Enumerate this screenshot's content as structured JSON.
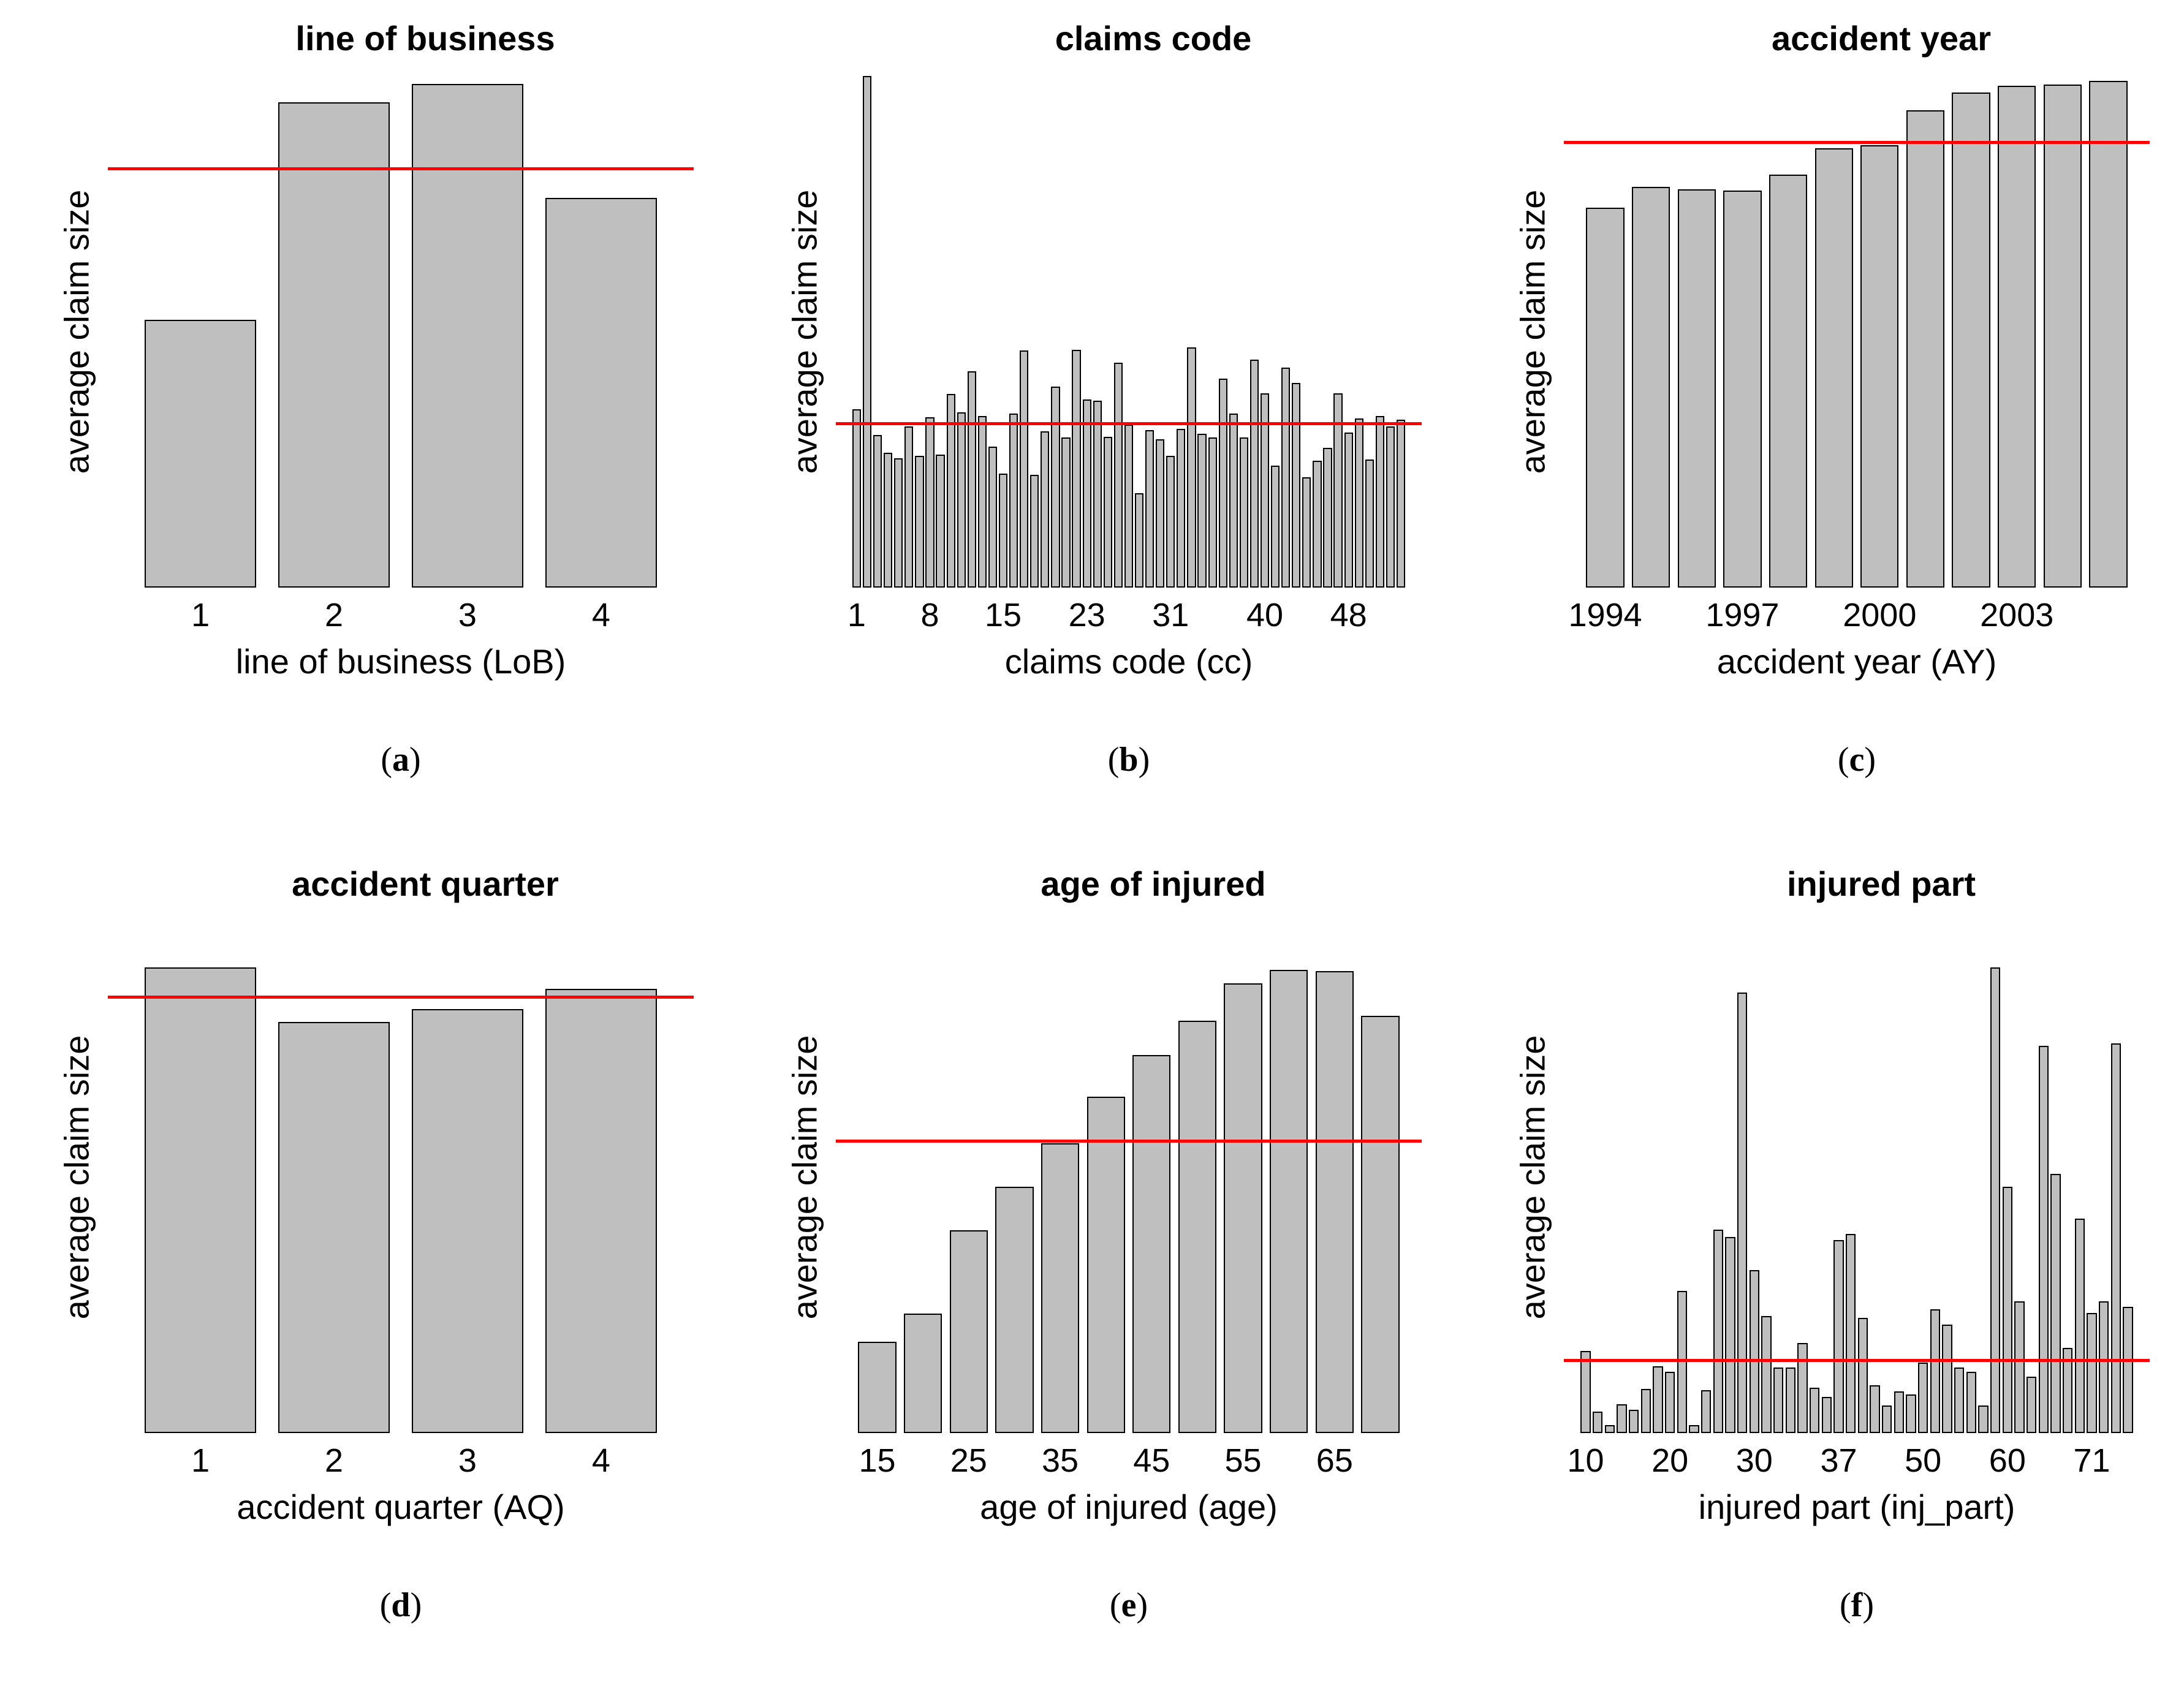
{
  "page": {
    "background": "#ffffff"
  },
  "styles": {
    "bar_fill": "#bfbfbf",
    "bar_border": "#000000",
    "mean_line_color": "#ff0000"
  },
  "chart_data": [
    {
      "panel_id": "a",
      "type": "bar",
      "title": "line of business",
      "xlabel": "line of business (LoB)",
      "ylabel": "average claim size",
      "y_axis_numbers_shown": false,
      "categories": [
        "1",
        "2",
        "3",
        "4"
      ],
      "tick_labels": [
        "1",
        "2",
        "3",
        "4"
      ],
      "tick_bar_indices": [
        0,
        1,
        2,
        3
      ],
      "values_rel_height": [
        0.523,
        0.949,
        0.985,
        0.762
      ],
      "mean_line_rel": 0.818,
      "caption": {
        "open": "(",
        "letter": "a",
        "close": ")"
      }
    },
    {
      "panel_id": "b",
      "type": "bar",
      "title": "claims code",
      "xlabel": "claims code (cc)",
      "ylabel": "average claim size",
      "y_axis_numbers_shown": false,
      "categories": [
        1,
        2,
        3,
        4,
        5,
        6,
        7,
        8,
        9,
        10,
        11,
        12,
        13,
        14,
        15,
        16,
        17,
        18,
        19,
        20,
        21,
        22,
        23,
        24,
        25,
        26,
        27,
        28,
        29,
        30,
        31,
        32,
        33,
        34,
        35,
        36,
        37,
        38,
        39,
        40,
        41,
        42,
        43,
        44,
        45,
        46,
        47,
        48,
        49,
        50,
        51,
        52,
        53
      ],
      "tick_labels": [
        "1",
        "8",
        "15",
        "23",
        "31",
        "40",
        "48"
      ],
      "tick_bar_indices": [
        0,
        7,
        14,
        22,
        30,
        39,
        47
      ],
      "values_rel_height": [
        0.348,
        1.0,
        0.298,
        0.263,
        0.253,
        0.315,
        0.258,
        0.333,
        0.26,
        0.378,
        0.343,
        0.423,
        0.335,
        0.275,
        0.223,
        0.34,
        0.463,
        0.22,
        0.305,
        0.393,
        0.293,
        0.465,
        0.368,
        0.365,
        0.295,
        0.44,
        0.318,
        0.185,
        0.308,
        0.29,
        0.258,
        0.31,
        0.47,
        0.3,
        0.293,
        0.408,
        0.34,
        0.293,
        0.445,
        0.38,
        0.238,
        0.43,
        0.4,
        0.215,
        0.248,
        0.273,
        0.38,
        0.303,
        0.33,
        0.25,
        0.335,
        0.315,
        0.328
      ],
      "mean_line_rel": 0.32,
      "caption": {
        "open": "(",
        "letter": "b",
        "close": ")"
      }
    },
    {
      "panel_id": "c",
      "type": "bar",
      "title": "accident year",
      "xlabel": "accident year (AY)",
      "ylabel": "average claim size",
      "y_axis_numbers_shown": false,
      "categories": [
        1994,
        1995,
        1996,
        1997,
        1998,
        1999,
        2000,
        2001,
        2002,
        2003,
        2004,
        2005
      ],
      "tick_labels": [
        "1994",
        "1997",
        "2000",
        "2003"
      ],
      "tick_bar_indices": [
        0,
        3,
        6,
        9
      ],
      "values_rel_height": [
        0.742,
        0.783,
        0.779,
        0.776,
        0.807,
        0.859,
        0.865,
        0.933,
        0.968,
        0.981,
        0.983,
        0.99
      ],
      "mean_line_rel": 0.87,
      "caption": {
        "open": "(",
        "letter": "c",
        "close": ")"
      }
    },
    {
      "panel_id": "d",
      "type": "bar",
      "title": "accident quarter",
      "xlabel": "accident quarter (AQ)",
      "ylabel": "average claim size",
      "y_axis_numbers_shown": false,
      "categories": [
        "1",
        "2",
        "3",
        "4"
      ],
      "tick_labels": [
        "1",
        "2",
        "3",
        "4"
      ],
      "tick_bar_indices": [
        0,
        1,
        2,
        3
      ],
      "values_rel_height": [
        0.91,
        0.804,
        0.829,
        0.868
      ],
      "mean_line_rel": 0.852,
      "caption": {
        "open": "(",
        "letter": "d",
        "close": ")"
      }
    },
    {
      "panel_id": "e",
      "type": "bar",
      "title": "age of injured",
      "xlabel": "age of injured (age)",
      "ylabel": "average claim size",
      "y_axis_numbers_shown": false,
      "categories": [
        15,
        20,
        25,
        30,
        35,
        40,
        45,
        50,
        55,
        60,
        65,
        70
      ],
      "tick_labels": [
        "15",
        "25",
        "35",
        "45",
        "55",
        "65"
      ],
      "tick_bar_indices": [
        0,
        2,
        4,
        6,
        8,
        10
      ],
      "values_rel_height": [
        0.179,
        0.234,
        0.396,
        0.482,
        0.566,
        0.657,
        0.739,
        0.806,
        0.879,
        0.905,
        0.903,
        0.816
      ],
      "mean_line_rel": 0.57,
      "caption": {
        "open": "(",
        "letter": "e",
        "close": ")"
      }
    },
    {
      "panel_id": "f",
      "type": "bar",
      "title": "injured part",
      "xlabel": "injured part (inj_part)",
      "ylabel": "average claim size",
      "y_axis_numbers_shown": false,
      "tick_labels": [
        "10",
        "20",
        "30",
        "37",
        "50",
        "60",
        "71"
      ],
      "tick_bar_indices": [
        0,
        7,
        14,
        21,
        28,
        35,
        42
      ],
      "values_rel_height": [
        0.16,
        0.042,
        0.015,
        0.056,
        0.046,
        0.086,
        0.13,
        0.12,
        0.278,
        0.015,
        0.084,
        0.398,
        0.383,
        0.861,
        0.318,
        0.229,
        0.128,
        0.128,
        0.176,
        0.089,
        0.071,
        0.377,
        0.389,
        0.225,
        0.094,
        0.054,
        0.081,
        0.076,
        0.138,
        0.242,
        0.212,
        0.128,
        0.12,
        0.054,
        0.91,
        0.481,
        0.258,
        0.11,
        0.757,
        0.506,
        0.166,
        0.419,
        0.235,
        0.257,
        0.762,
        0.247
      ],
      "mean_line_rel": 0.141,
      "caption": {
        "open": "(",
        "letter": "f",
        "close": ")"
      }
    }
  ]
}
